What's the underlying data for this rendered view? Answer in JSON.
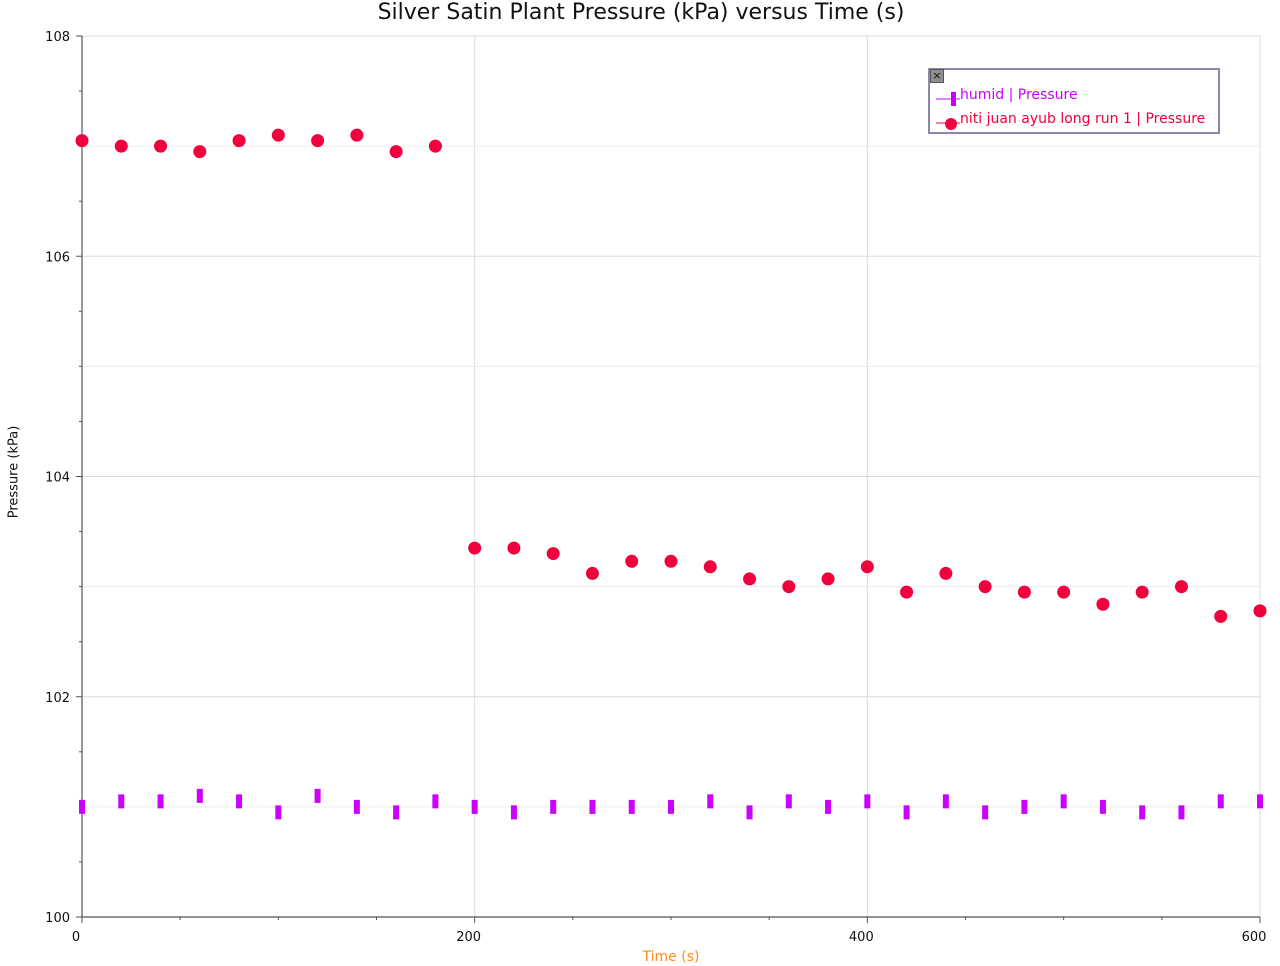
{
  "chart_data": {
    "type": "scatter",
    "title": "Silver Satin Plant Pressure (kPa) versus Time (s)",
    "xlabel": "Time (s)",
    "ylabel": "Pressure (kPa)",
    "xlim": [
      0,
      600
    ],
    "ylim": [
      100,
      108
    ],
    "x_ticks": [
      0,
      200,
      400,
      600
    ],
    "y_ticks": [
      100,
      102,
      104,
      106,
      108
    ],
    "grid": true,
    "legend_position": "top-right",
    "series": [
      {
        "name": "humid | Pressure",
        "color": "#cc00ff",
        "marker": "bar",
        "x": [
          0,
          20,
          40,
          60,
          80,
          100,
          120,
          140,
          160,
          180,
          200,
          220,
          240,
          260,
          280,
          300,
          320,
          340,
          360,
          380,
          400,
          420,
          440,
          460,
          480,
          500,
          520,
          540,
          560,
          580,
          600
        ],
        "y": [
          101.0,
          101.05,
          101.05,
          101.1,
          101.05,
          100.95,
          101.1,
          101.0,
          100.95,
          101.05,
          101.0,
          100.95,
          101.0,
          101.0,
          101.0,
          101.0,
          101.05,
          100.95,
          101.05,
          101.0,
          101.05,
          100.95,
          101.05,
          100.95,
          101.0,
          101.05,
          101.0,
          100.95,
          100.95,
          101.05,
          101.05
        ]
      },
      {
        "name": "niti juan ayub long run 1 | Pressure",
        "color": "#f0003c",
        "marker": "circle",
        "x": [
          0,
          20,
          40,
          60,
          80,
          100,
          120,
          140,
          160,
          180,
          200,
          220,
          240,
          260,
          280,
          300,
          320,
          340,
          360,
          380,
          400,
          420,
          440,
          460,
          480,
          500,
          520,
          540,
          560,
          580,
          600
        ],
        "y": [
          107.05,
          107.0,
          107.0,
          106.95,
          107.05,
          107.1,
          107.05,
          107.1,
          106.95,
          107.0,
          103.35,
          103.35,
          103.3,
          103.12,
          103.23,
          103.23,
          103.18,
          103.07,
          103.0,
          103.07,
          103.18,
          102.95,
          103.12,
          103.0,
          102.95,
          102.95,
          102.84,
          102.95,
          103.0,
          102.73,
          102.78
        ]
      }
    ]
  }
}
